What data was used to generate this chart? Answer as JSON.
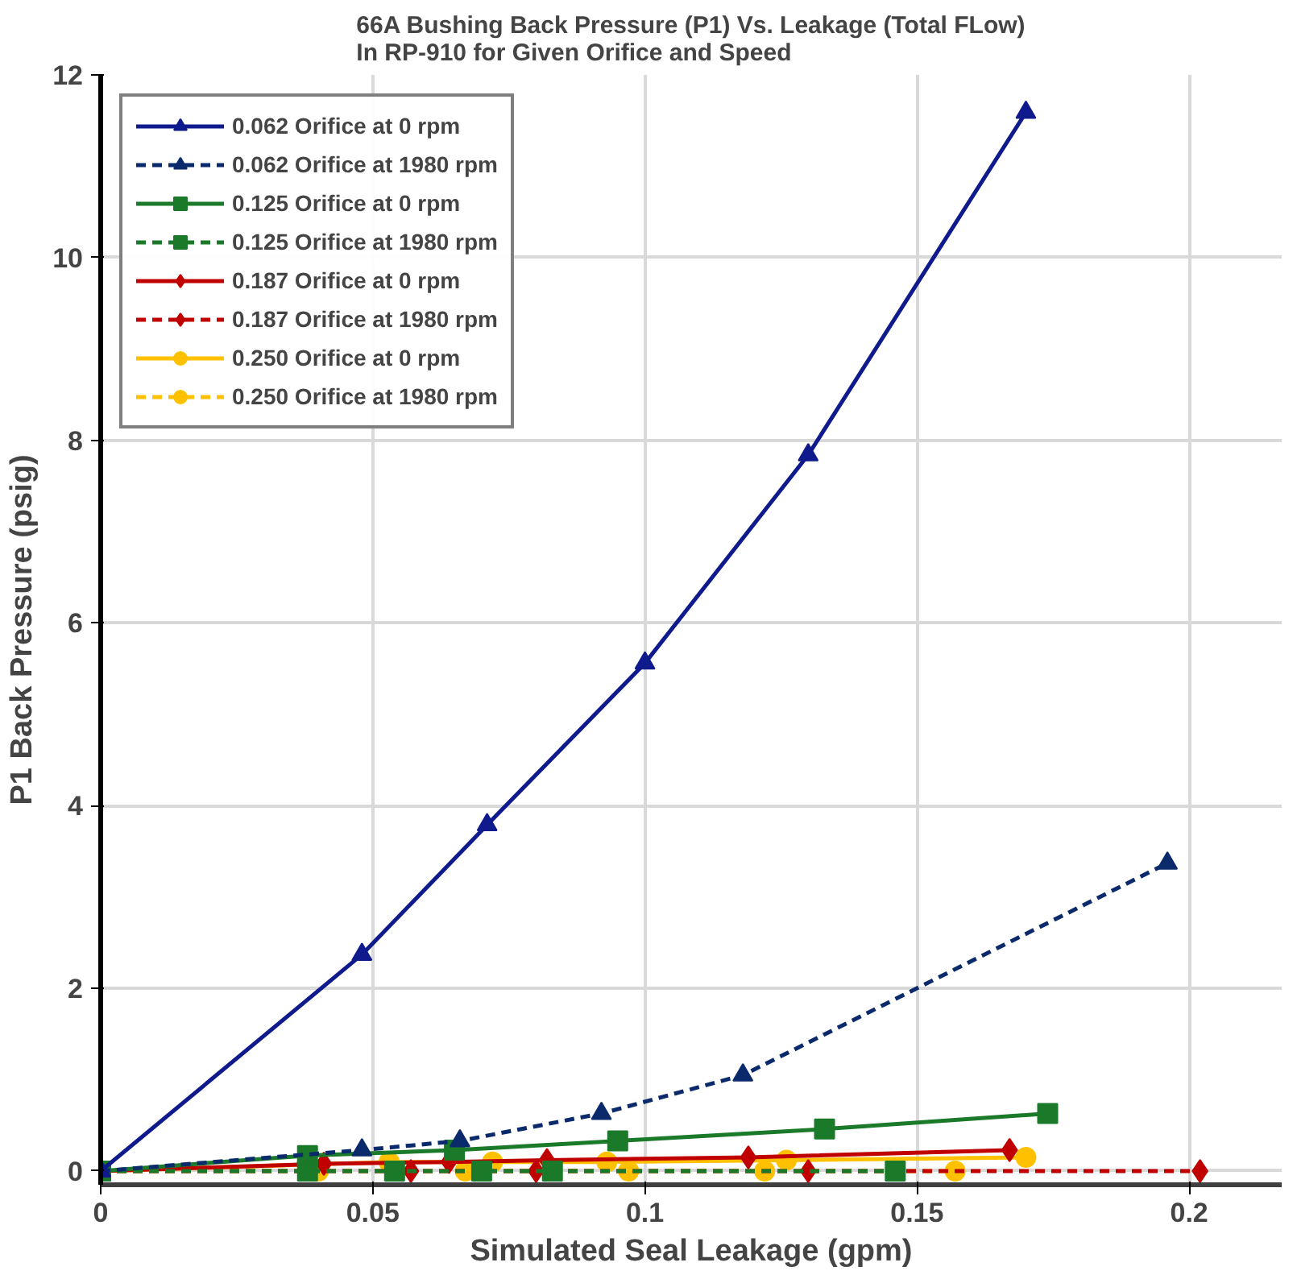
{
  "chart_data": {
    "type": "line",
    "title": "66A Bushing Back Pressure (P1) Vs. Leakage (Total FLow)\nIn RP-910 for Given Orifice and Speed",
    "xlabel": "Simulated Seal Leakage (gpm)",
    "ylabel": "P1 Back Pressure (psig)",
    "xlim": [
      0,
      0.217
    ],
    "ylim": [
      -0.15,
      12
    ],
    "xticks": [
      0,
      0.05,
      0.1,
      0.15,
      0.2
    ],
    "yticks": [
      0,
      2,
      4,
      6,
      8,
      10,
      12
    ],
    "grid": true,
    "legend": "top left",
    "series": [
      {
        "name": "0.062 Orifice at 0 rpm",
        "color": "#0f1a8c",
        "marker": "triangle",
        "line_style": "solid",
        "x": [
          0,
          0.048,
          0.071,
          0.1,
          0.13,
          0.17
        ],
        "values": [
          0,
          2.37,
          3.79,
          5.56,
          7.84,
          11.59
        ]
      },
      {
        "name": "0.062 Orifice at 1980 rpm",
        "color": "#0a2a6b",
        "marker": "triangle",
        "line_style": "dashed",
        "x": [
          0,
          0.048,
          0.066,
          0.092,
          0.118,
          0.196
        ],
        "values": [
          0,
          0.23,
          0.33,
          0.63,
          1.05,
          3.37
        ]
      },
      {
        "name": "0.125 Orifice at 0 rpm",
        "color": "#1a7a2a",
        "marker": "square",
        "line_style": "solid",
        "x": [
          0,
          0.038,
          0.065,
          0.095,
          0.133,
          0.174
        ],
        "values": [
          0,
          0.17,
          0.23,
          0.33,
          0.46,
          0.63
        ]
      },
      {
        "name": "0.125 Orifice at 1980 rpm",
        "color": "#1a7a2a",
        "marker": "square",
        "line_style": "dashed",
        "x": [
          0,
          0.038,
          0.054,
          0.07,
          0.083,
          0.146
        ],
        "values": [
          0,
          0,
          0,
          0,
          0,
          0
        ]
      },
      {
        "name": "0.187 Orifice at 0 rpm",
        "color": "#c00000",
        "marker": "diamond",
        "line_style": "solid",
        "x": [
          0,
          0.041,
          0.064,
          0.082,
          0.119,
          0.167
        ],
        "values": [
          0,
          0.08,
          0.1,
          0.12,
          0.15,
          0.23
        ]
      },
      {
        "name": "0.187 Orifice at 1980 rpm",
        "color": "#c00000",
        "marker": "diamond",
        "line_style": "dashed",
        "x": [
          0,
          0.057,
          0.08,
          0.13,
          0.202
        ],
        "values": [
          0,
          0,
          0,
          0,
          0
        ]
      },
      {
        "name": "0.250 Orifice at 0 rpm",
        "color": "#ffc000",
        "marker": "circle",
        "line_style": "solid",
        "x": [
          0,
          0.053,
          0.072,
          0.093,
          0.126,
          0.17
        ],
        "values": [
          0,
          0.1,
          0.1,
          0.1,
          0.12,
          0.15
        ]
      },
      {
        "name": "0.250 Orifice at 1980 rpm",
        "color": "#ffc000",
        "marker": "circle",
        "line_style": "dashed",
        "x": [
          0,
          0.04,
          0.067,
          0.097,
          0.122,
          0.157
        ],
        "values": [
          0,
          0,
          0,
          0,
          0,
          0
        ]
      }
    ]
  }
}
